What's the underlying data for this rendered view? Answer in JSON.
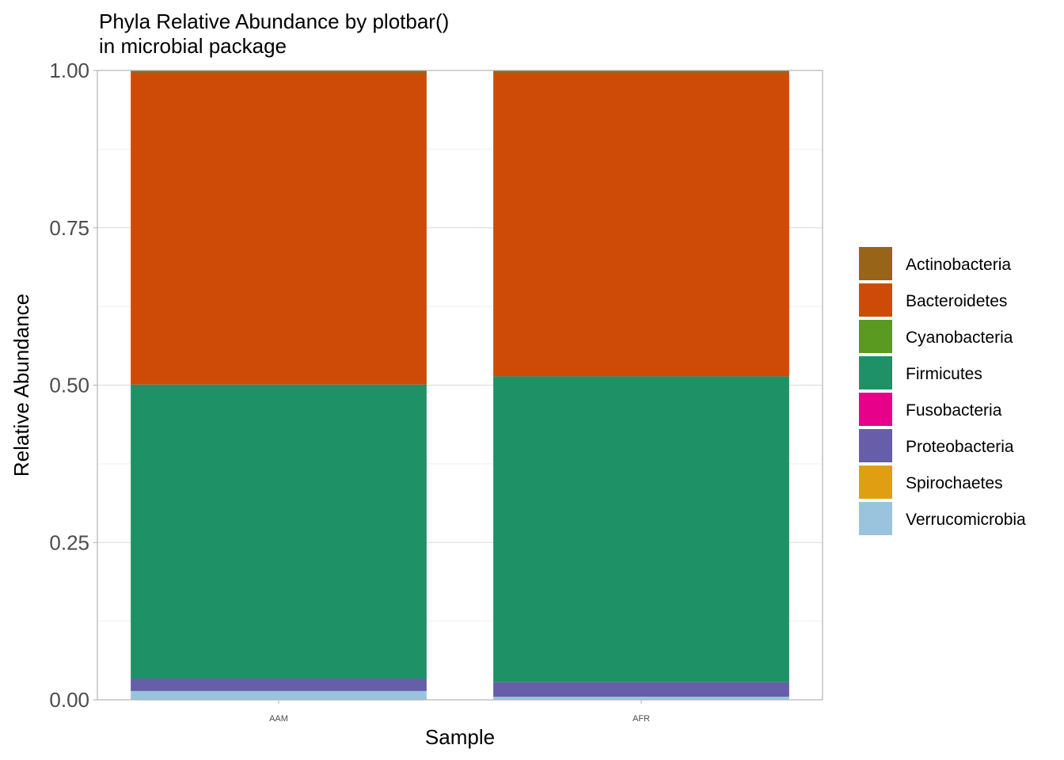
{
  "chart_data": {
    "type": "bar",
    "stacked": true,
    "title": "Phyla Relative Abundance by plotbar()\nin microbial package",
    "xlabel": "Sample",
    "ylabel": "Relative Abundance",
    "ylim": [
      0,
      1
    ],
    "yticks": [
      "0.00",
      "0.25",
      "0.50",
      "0.75",
      "1.00"
    ],
    "grid": true,
    "legend_position": "right",
    "categories": [
      "AAM",
      "AFR"
    ],
    "series": [
      {
        "name": "Verrucomicrobia",
        "color": "#9AC4DE",
        "values": [
          0.014,
          0.005
        ]
      },
      {
        "name": "Spirochaetes",
        "color": "#E09F12",
        "values": [
          0.0,
          0.0
        ]
      },
      {
        "name": "Proteobacteria",
        "color": "#665EA8",
        "values": [
          0.02,
          0.023
        ]
      },
      {
        "name": "Fusobacteria",
        "color": "#E6008A",
        "values": [
          0.0,
          0.0
        ]
      },
      {
        "name": "Firmicutes",
        "color": "#1E9166",
        "values": [
          0.467,
          0.486
        ]
      },
      {
        "name": "Cyanobacteria",
        "color": "#5A9A20",
        "values": [
          0.0,
          0.0
        ]
      },
      {
        "name": "Bacteroidetes",
        "color": "#CE4B07",
        "values": [
          0.494,
          0.481
        ]
      },
      {
        "name": "Actinobacteria",
        "color": "#976418",
        "values": [
          0.005,
          0.005
        ]
      }
    ],
    "legend_order": [
      "Actinobacteria",
      "Bacteroidetes",
      "Cyanobacteria",
      "Firmicutes",
      "Fusobacteria",
      "Proteobacteria",
      "Spirochaetes",
      "Verrucomicrobia"
    ]
  }
}
